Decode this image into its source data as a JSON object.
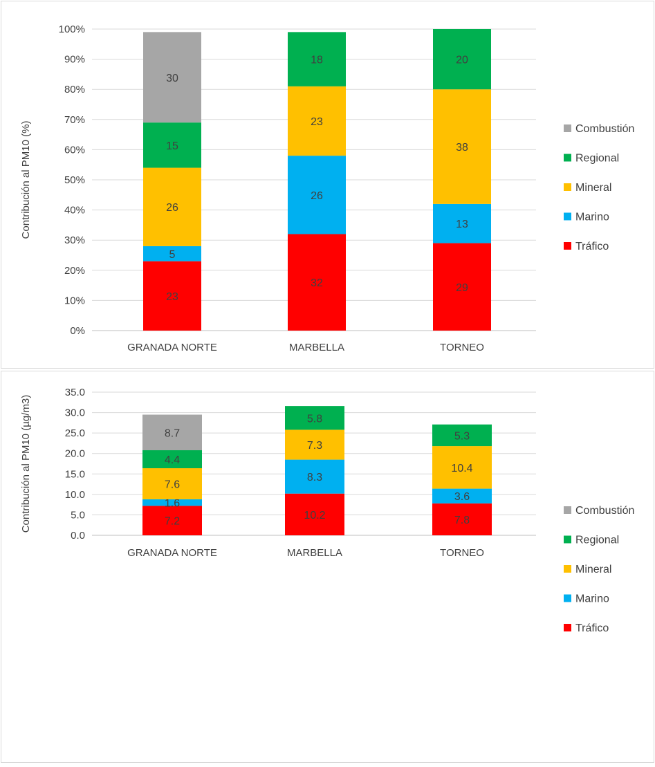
{
  "colors": {
    "Tráfico": "#ff0000",
    "Marino": "#00b0f0",
    "Mineral": "#ffc000",
    "Regional": "#00b050",
    "Combustión": "#a6a6a6"
  },
  "chart_data": [
    {
      "type": "bar",
      "stacked": "percent",
      "categories": [
        "GRANADA NORTE",
        "MARBELLA",
        "TORNEO"
      ],
      "ylabel": "Contribución al PM10 (%)",
      "ylim": [
        0,
        100
      ],
      "yticks": [
        "0%",
        "10%",
        "20%",
        "30%",
        "40%",
        "50%",
        "60%",
        "70%",
        "80%",
        "90%",
        "100%"
      ],
      "legend_position": "right",
      "grid": true,
      "series": [
        {
          "name": "Tráfico",
          "values": [
            23,
            32,
            29
          ],
          "labels": [
            "23",
            "32",
            "29"
          ]
        },
        {
          "name": "Marino",
          "values": [
            5,
            26,
            13
          ],
          "labels": [
            "5",
            "26",
            "13"
          ]
        },
        {
          "name": "Mineral",
          "values": [
            26,
            23,
            38
          ],
          "labels": [
            "26",
            "23",
            "38"
          ]
        },
        {
          "name": "Regional",
          "values": [
            15,
            18,
            20
          ],
          "labels": [
            "15",
            "18",
            "20"
          ]
        },
        {
          "name": "Combustión",
          "values": [
            30,
            null,
            null
          ],
          "labels": [
            "30",
            "",
            ""
          ]
        }
      ]
    },
    {
      "type": "bar",
      "stacked": "absolute",
      "categories": [
        "GRANADA NORTE",
        "MARBELLA",
        "TORNEO"
      ],
      "ylabel": "Contribución al PM10 (µg/m3)",
      "ylim": [
        0,
        35
      ],
      "yticks": [
        "0.0",
        "5.0",
        "10.0",
        "15.0",
        "20.0",
        "25.0",
        "30.0",
        "35.0"
      ],
      "legend_position": "right",
      "grid": true,
      "series": [
        {
          "name": "Tráfico",
          "values": [
            7.2,
            10.2,
            7.8
          ],
          "labels": [
            "7.2",
            "10.2",
            "7.8"
          ]
        },
        {
          "name": "Marino",
          "values": [
            1.6,
            8.3,
            3.6
          ],
          "labels": [
            "1.6",
            "8.3",
            "3.6"
          ]
        },
        {
          "name": "Mineral",
          "values": [
            7.6,
            7.3,
            10.4
          ],
          "labels": [
            "7.6",
            "7.3",
            "10.4"
          ]
        },
        {
          "name": "Regional",
          "values": [
            4.4,
            5.8,
            5.3
          ],
          "labels": [
            "4.4",
            "5.8",
            "5.3"
          ]
        },
        {
          "name": "Combustión",
          "values": [
            8.7,
            null,
            null
          ],
          "labels": [
            "8.7",
            "",
            ""
          ]
        }
      ]
    }
  ]
}
